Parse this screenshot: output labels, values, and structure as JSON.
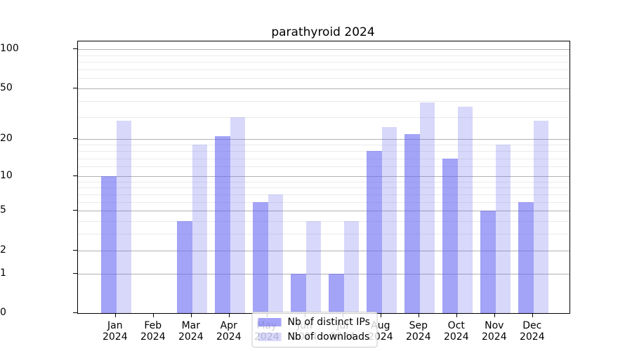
{
  "title": "parathyroid 2024",
  "chart_data": {
    "type": "bar",
    "title": "parathyroid 2024",
    "categories": [
      "Jan",
      "Feb",
      "Mar",
      "Apr",
      "May",
      "Jun",
      "Jul",
      "Aug",
      "Sep",
      "Oct",
      "Nov",
      "Dec"
    ],
    "category_year": "2024",
    "series": [
      {
        "name": "Nb of distinct IPs",
        "color": "rgba(101,101,241,0.60)",
        "values": [
          10,
          0,
          4,
          21,
          6,
          1,
          1,
          16,
          22,
          14,
          5,
          6
        ]
      },
      {
        "name": "Nb of downloads",
        "color": "rgba(101,101,241,0.25)",
        "values": [
          28,
          0,
          18,
          30,
          7,
          4,
          4,
          25,
          39,
          36,
          18,
          28
        ]
      }
    ],
    "scale": "log1p",
    "ylim": [
      0,
      100
    ],
    "yticks": [
      0,
      1,
      2,
      5,
      10,
      20,
      50,
      100
    ],
    "minor_gridlines": [
      3,
      4,
      6,
      7,
      8,
      9,
      12,
      14,
      16,
      18,
      30,
      40,
      60,
      70,
      80,
      90
    ],
    "grid": true,
    "grid_major_color": "#b2b2b2",
    "grid_minor_color": "#ebebeb",
    "legend_position": "lower center"
  }
}
